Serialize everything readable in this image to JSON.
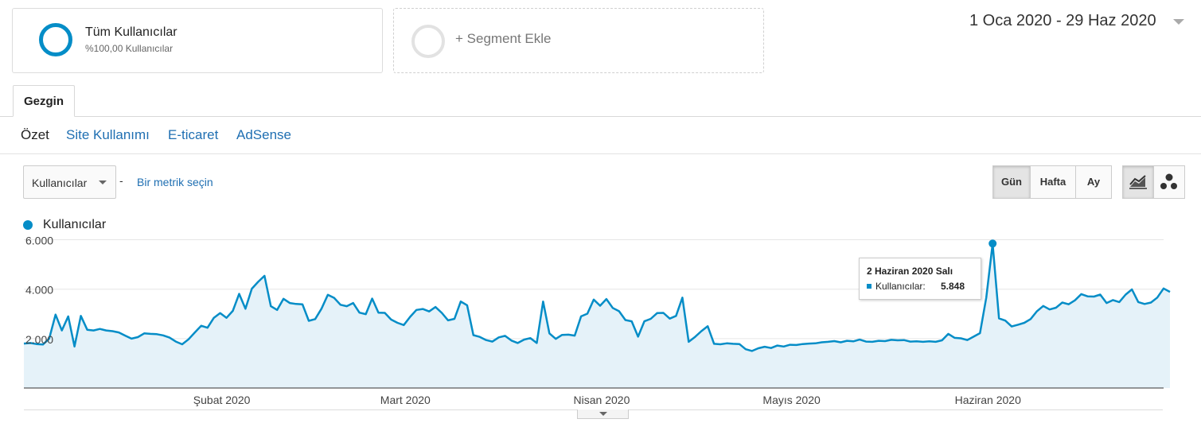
{
  "segments": {
    "all_users": {
      "title": "Tüm Kullanıcılar",
      "subtitle": "%100,00 Kullanıcılar"
    },
    "add_segment": {
      "label": "+ Segment Ekle"
    }
  },
  "date_range": "1 Oca 2020 - 29 Haz 2020",
  "tabs": [
    {
      "label": "Gezgin"
    }
  ],
  "subtabs": [
    {
      "label": "Özet"
    },
    {
      "label": "Site Kullanımı"
    },
    {
      "label": "E-ticaret"
    },
    {
      "label": "AdSense"
    }
  ],
  "metric_selector": {
    "selected": "Kullanıcılar",
    "dash": "-",
    "second_metric_link": "Bir metrik seçin"
  },
  "granularity": {
    "day": "Gün",
    "week": "Hafta",
    "month": "Ay",
    "active": "Gün"
  },
  "chart_view": {
    "line_icon": "line-chart-icon",
    "motion_icon": "motion-chart-icon"
  },
  "colors": {
    "series": "#058dc7",
    "fill": "#e5f2f9"
  },
  "legend": {
    "label": "Kullanıcılar"
  },
  "tooltip": {
    "date": "2 Haziran 2020 Salı",
    "label": "Kullanıcılar:",
    "value": "5.848"
  },
  "chart_data": {
    "type": "area",
    "x_start": "2020-01-01",
    "x_end": "2020-06-29",
    "x_tick_labels": [
      "Şubat 2020",
      "Mart 2020",
      "Nisan 2020",
      "Mayıs 2020",
      "Haziran 2020"
    ],
    "y_tick_labels": [
      "2.000",
      "4.000",
      "6.000"
    ],
    "ylim": [
      0,
      6000
    ],
    "grid": true,
    "series": [
      {
        "name": "Kullanıcılar",
        "values": [
          1800,
          1820,
          1780,
          1760,
          2000,
          2970,
          2330,
          2900,
          1680,
          2920,
          2360,
          2330,
          2390,
          2330,
          2300,
          2250,
          2120,
          2000,
          2060,
          2210,
          2190,
          2180,
          2130,
          2040,
          1880,
          1770,
          1970,
          2250,
          2520,
          2440,
          2840,
          3030,
          2840,
          3120,
          3810,
          3210,
          4020,
          4300,
          4540,
          3310,
          3160,
          3610,
          3440,
          3400,
          3390,
          2720,
          2790,
          3210,
          3770,
          3650,
          3370,
          3310,
          3440,
          3050,
          2990,
          3620,
          3050,
          3040,
          2770,
          2640,
          2550,
          2880,
          3160,
          3200,
          3100,
          3280,
          3040,
          2740,
          2800,
          3500,
          3350,
          2140,
          2070,
          1940,
          1880,
          2050,
          2110,
          1920,
          1820,
          1960,
          2020,
          1820,
          3500,
          2210,
          1990,
          2150,
          2160,
          2120,
          2900,
          3010,
          3580,
          3330,
          3600,
          3240,
          3110,
          2750,
          2700,
          2080,
          2700,
          2800,
          3030,
          3040,
          2810,
          2920,
          3660,
          1870,
          2070,
          2300,
          2500,
          1790,
          1770,
          1810,
          1790,
          1780,
          1570,
          1500,
          1610,
          1670,
          1620,
          1720,
          1680,
          1750,
          1740,
          1780,
          1800,
          1810,
          1850,
          1870,
          1900,
          1850,
          1910,
          1890,
          1960,
          1880,
          1870,
          1910,
          1900,
          1950,
          1930,
          1940,
          1880,
          1890,
          1870,
          1890,
          1870,
          1930,
          2190,
          2030,
          2010,
          1940,
          2080,
          2220,
          3660,
          5848,
          2820,
          2730,
          2490,
          2560,
          2640,
          2790,
          3110,
          3320,
          3180,
          3250,
          3460,
          3390,
          3550,
          3800,
          3710,
          3700,
          3780,
          3440,
          3560,
          3480,
          3780,
          3990,
          3480,
          3400,
          3460,
          3660,
          4030,
          3890
        ]
      }
    ]
  }
}
